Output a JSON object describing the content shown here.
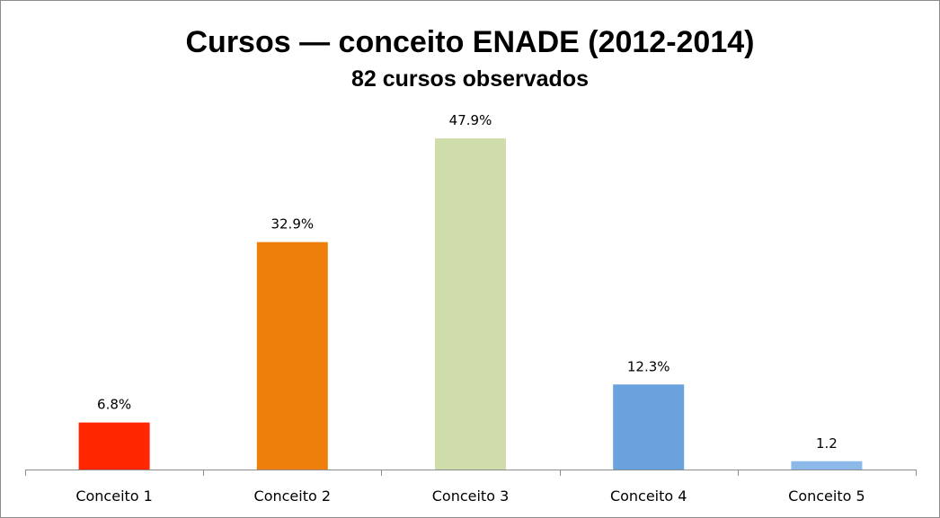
{
  "chart_data": {
    "type": "bar",
    "title": "Cursos — conceito ENADE (2012-2014)",
    "subtitle": "82 cursos observados",
    "categories": [
      "Conceito 1",
      "Conceito 2",
      "Conceito 3",
      "Conceito 4",
      "Conceito 5"
    ],
    "values": [
      6.8,
      32.9,
      47.9,
      12.3,
      1.2
    ],
    "data_labels": [
      "6.8%",
      "32.9%",
      "47.9%",
      "12.3%",
      "1.2"
    ],
    "colors": [
      "#ff2600",
      "#ee7f0a",
      "#cfddaa",
      "#6aa2de",
      "#8db8ea"
    ],
    "xlabel": "",
    "ylabel": "",
    "ylim": [
      0,
      50
    ],
    "grid": false,
    "legend": "none"
  }
}
